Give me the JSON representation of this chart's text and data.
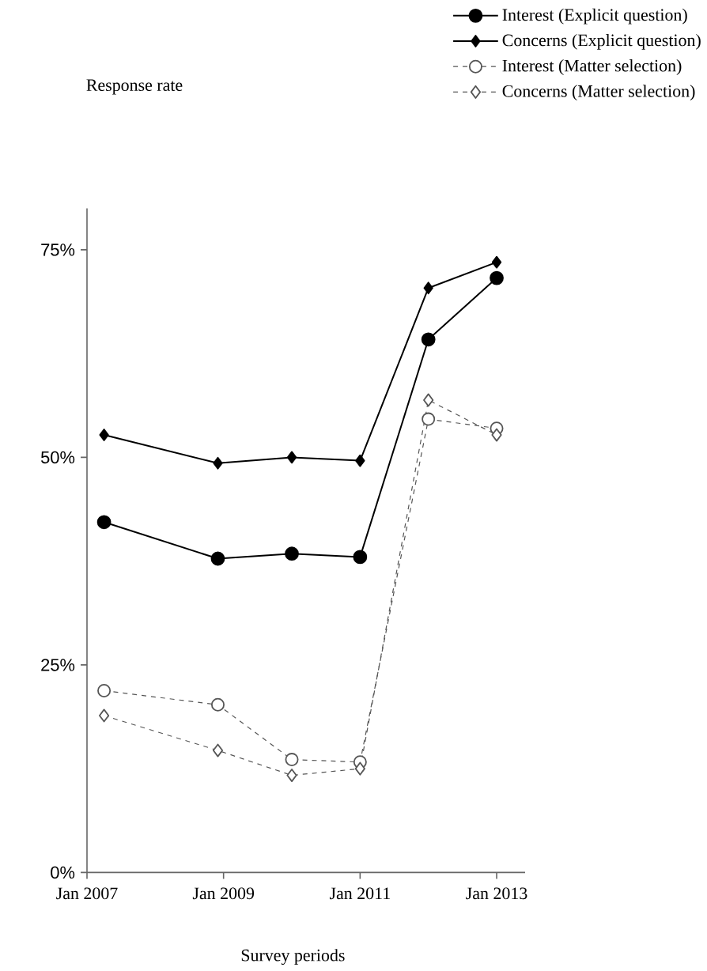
{
  "chart_data": {
    "type": "line",
    "xlabel": "Survey periods",
    "annotations": [
      "Response rate"
    ],
    "x": [
      "2007-04",
      "2008-12",
      "2010-01",
      "2011-01",
      "2012-01",
      "2013-01"
    ],
    "xlim": [
      "2007-01",
      "2013-06"
    ],
    "ylim": [
      0,
      80
    ],
    "xticks": [
      {
        "value": "2007-01",
        "label": "Jan 2007"
      },
      {
        "value": "2009-01",
        "label": "Jan 2009"
      },
      {
        "value": "2011-01",
        "label": "Jan 2011"
      },
      {
        "value": "2013-01",
        "label": "Jan 2013"
      }
    ],
    "yticks": [
      {
        "value": 0,
        "label": "0%"
      },
      {
        "value": 25,
        "label": "25%"
      },
      {
        "value": 50,
        "label": "50%"
      },
      {
        "value": 75,
        "label": "75%"
      }
    ],
    "grid": false,
    "legend": "top right",
    "series": [
      {
        "name": "Interest (Explicit question)",
        "color": "#000000",
        "marker": "circle",
        "line_style": "solid",
        "values": [
          42.2,
          37.8,
          38.4,
          38.0,
          64.2,
          71.6
        ]
      },
      {
        "name": "Concerns (Explicit question)",
        "color": "#000000",
        "marker": "diamond",
        "line_style": "solid",
        "values": [
          52.7,
          49.3,
          50.0,
          49.6,
          70.4,
          73.5
        ]
      },
      {
        "name": "Interest (Matter selection)",
        "color": "#555555",
        "marker": "circle",
        "line_style": "dashed",
        "values": [
          21.9,
          20.2,
          13.6,
          13.3,
          54.6,
          53.5
        ]
      },
      {
        "name": "Concerns (Matter selection)",
        "color": "#555555",
        "marker": "diamond",
        "line_style": "dashed",
        "values": [
          18.9,
          14.7,
          11.7,
          12.5,
          56.9,
          52.7
        ]
      }
    ]
  }
}
